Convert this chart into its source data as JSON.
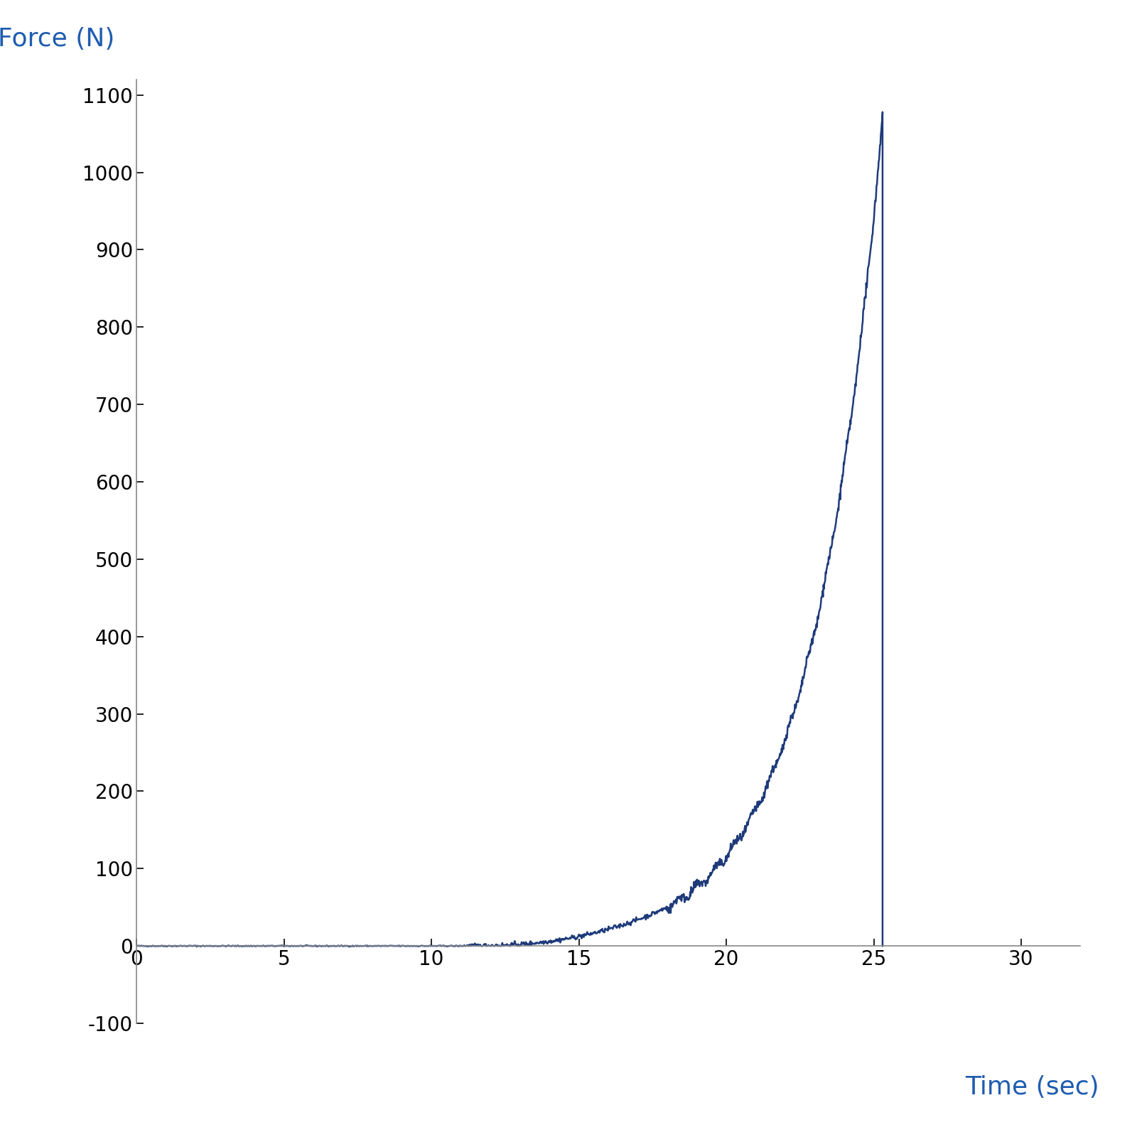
{
  "xlabel": "Time (sec)",
  "ylabel": "Force (N)",
  "xlabel_color": "#1F5CB0",
  "ylabel_color": "#1F5CB0",
  "line_color": "#1E3A7A",
  "xlim": [
    0,
    32
  ],
  "ylim": [
    -100,
    1120
  ],
  "xticks": [
    0,
    5,
    10,
    15,
    20,
    25,
    30
  ],
  "yticks": [
    -100,
    0,
    100,
    200,
    300,
    400,
    500,
    600,
    700,
    800,
    900,
    1000,
    1100
  ],
  "peak_x": 25.3,
  "peak_y": 1070,
  "label_fontsize": 26,
  "tick_fontsize": 20,
  "line_width": 1.8,
  "figsize": [
    16,
    16
  ],
  "dpi": 100,
  "background_color": "#ffffff",
  "axis_color": "#888888"
}
